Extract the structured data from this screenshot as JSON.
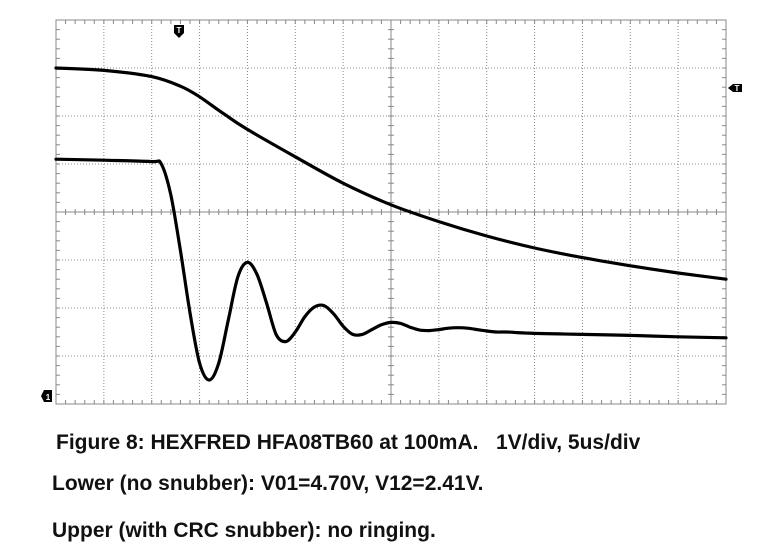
{
  "caption": {
    "line1": "Figure 8: HEXFRED HFA08TB60 at 100mA.   1V/div, 5us/div",
    "line2": "Lower (no snubber): V01=4.70V, V12=2.41V.",
    "line3": "Upper (with CRC snubber): no ringing."
  },
  "markers": {
    "trigger_top": "T",
    "trigger_level": "T",
    "ch1_ground": "1"
  },
  "colors": {
    "trace": "#000000",
    "grid": "#888888",
    "background": "#ffffff"
  },
  "chart_data": {
    "type": "line",
    "title": "",
    "xlabel": "",
    "ylabel": "",
    "x_unit": "div",
    "y_unit": "div",
    "xlim": [
      0,
      14
    ],
    "ylim": [
      0,
      8
    ],
    "grid": true,
    "series": [
      {
        "x": [
          0,
          1,
          2,
          2.6,
          3,
          3.5,
          4,
          5,
          6,
          7,
          8,
          9,
          10,
          11,
          12,
          13,
          14
        ],
        "y": [
          7.0,
          6.95,
          6.82,
          6.62,
          6.4,
          6.05,
          5.72,
          5.15,
          4.6,
          4.15,
          3.8,
          3.5,
          3.25,
          3.05,
          2.88,
          2.73,
          2.6
        ]
      },
      {
        "x": [
          0,
          1,
          2,
          2.2,
          2.4,
          2.6,
          2.8,
          3.0,
          3.2,
          3.4,
          3.6,
          3.8,
          4.0,
          4.2,
          4.4,
          4.6,
          4.8,
          5.0,
          5.2,
          5.4,
          5.6,
          5.8,
          6.0,
          6.2,
          6.4,
          6.6,
          6.8,
          7.0,
          7.2,
          7.4,
          7.6,
          7.8,
          8.0,
          8.2,
          8.4,
          8.6,
          8.8,
          9.0,
          9.2,
          9.4,
          9.6,
          9.8,
          10.0,
          10.5,
          11,
          12,
          13,
          14
        ],
        "y": [
          5.1,
          5.08,
          5.05,
          5.0,
          4.35,
          3.2,
          1.9,
          0.85,
          0.5,
          0.85,
          1.75,
          2.65,
          2.95,
          2.7,
          2.1,
          1.45,
          1.3,
          1.5,
          1.82,
          2.02,
          2.05,
          1.88,
          1.62,
          1.45,
          1.45,
          1.55,
          1.65,
          1.7,
          1.68,
          1.6,
          1.54,
          1.53,
          1.55,
          1.58,
          1.59,
          1.58,
          1.55,
          1.52,
          1.5,
          1.5,
          1.49,
          1.48,
          1.47,
          1.46,
          1.45,
          1.43,
          1.4,
          1.38
        ]
      }
    ],
    "annotations": [
      "V01=4.70V",
      "V12=2.41V"
    ]
  }
}
